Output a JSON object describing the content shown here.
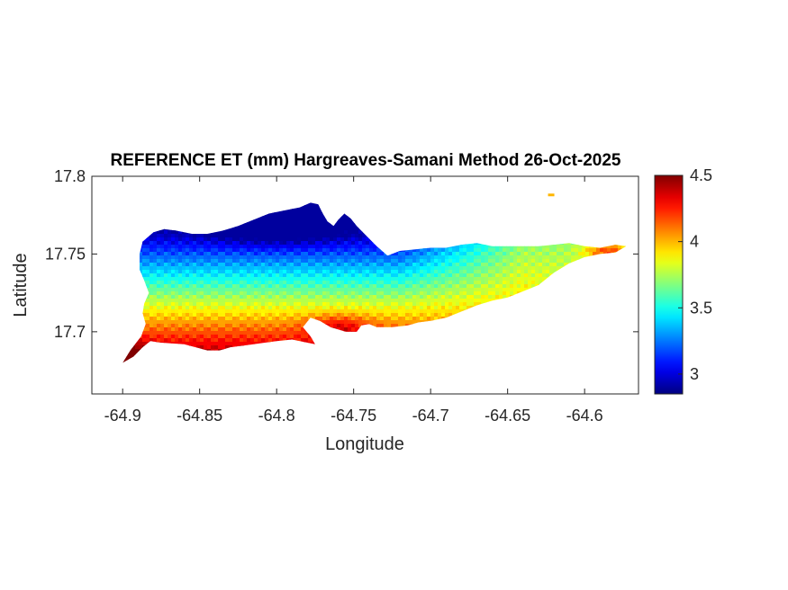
{
  "chart_data": {
    "type": "heatmap",
    "title": "REFERENCE ET (mm) Hargreaves-Samani Method  26-Oct-2025",
    "xlabel": "Longitude",
    "ylabel": "Latitude",
    "xlim": [
      -64.92,
      -64.565
    ],
    "ylim": [
      17.66,
      17.8
    ],
    "xticks": [
      -64.9,
      -64.85,
      -64.8,
      -64.75,
      -64.7,
      -64.65,
      -64.6
    ],
    "xtick_labels": [
      "-64.9",
      "-64.85",
      "-64.8",
      "-64.75",
      "-64.7",
      "-64.65",
      "-64.6"
    ],
    "yticks": [
      17.7,
      17.75,
      17.8
    ],
    "ytick_labels": [
      "17.7",
      "17.75",
      "17.8"
    ],
    "colormap": "jet",
    "colorbar": {
      "range": [
        2.85,
        4.5
      ],
      "ticks": [
        3,
        3.5,
        4,
        4.5
      ],
      "tick_labels": [
        "3",
        "3.5",
        "4",
        "4.5"
      ]
    },
    "grid": false,
    "island_outline_lonlat": [
      [
        -64.9,
        17.68
      ],
      [
        -64.893,
        17.684
      ],
      [
        -64.887,
        17.69
      ],
      [
        -64.882,
        17.694
      ],
      [
        -64.875,
        17.693
      ],
      [
        -64.86,
        17.692
      ],
      [
        -64.845,
        17.688
      ],
      [
        -64.837,
        17.688
      ],
      [
        -64.83,
        17.69
      ],
      [
        -64.815,
        17.692
      ],
      [
        -64.8,
        17.694
      ],
      [
        -64.79,
        17.695
      ],
      [
        -64.78,
        17.693
      ],
      [
        -64.775,
        17.692
      ],
      [
        -64.778,
        17.697
      ],
      [
        -64.783,
        17.703
      ],
      [
        -64.778,
        17.709
      ],
      [
        -64.772,
        17.707
      ],
      [
        -64.765,
        17.703
      ],
      [
        -64.755,
        17.7
      ],
      [
        -64.748,
        17.7
      ],
      [
        -64.745,
        17.704
      ],
      [
        -64.74,
        17.705
      ],
      [
        -64.735,
        17.703
      ],
      [
        -64.725,
        17.703
      ],
      [
        -64.715,
        17.704
      ],
      [
        -64.708,
        17.706
      ],
      [
        -64.7,
        17.707
      ],
      [
        -64.69,
        17.709
      ],
      [
        -64.68,
        17.713
      ],
      [
        -64.67,
        17.717
      ],
      [
        -64.66,
        17.72
      ],
      [
        -64.65,
        17.722
      ],
      [
        -64.64,
        17.726
      ],
      [
        -64.63,
        17.73
      ],
      [
        -64.62,
        17.738
      ],
      [
        -64.61,
        17.744
      ],
      [
        -64.6,
        17.748
      ],
      [
        -64.59,
        17.75
      ],
      [
        -64.58,
        17.751
      ],
      [
        -64.573,
        17.755
      ],
      [
        -64.58,
        17.756
      ],
      [
        -64.59,
        17.754
      ],
      [
        -64.6,
        17.755
      ],
      [
        -64.61,
        17.757
      ],
      [
        -64.62,
        17.756
      ],
      [
        -64.63,
        17.755
      ],
      [
        -64.64,
        17.755
      ],
      [
        -64.65,
        17.755
      ],
      [
        -64.66,
        17.755
      ],
      [
        -64.67,
        17.757
      ],
      [
        -64.68,
        17.756
      ],
      [
        -64.69,
        17.754
      ],
      [
        -64.7,
        17.754
      ],
      [
        -64.71,
        17.753
      ],
      [
        -64.72,
        17.752
      ],
      [
        -64.728,
        17.749
      ],
      [
        -64.735,
        17.755
      ],
      [
        -64.742,
        17.762
      ],
      [
        -64.748,
        17.768
      ],
      [
        -64.752,
        17.773
      ],
      [
        -64.756,
        17.776
      ],
      [
        -64.76,
        17.772
      ],
      [
        -64.763,
        17.768
      ],
      [
        -64.767,
        17.771
      ],
      [
        -64.77,
        17.776
      ],
      [
        -64.773,
        17.782
      ],
      [
        -64.778,
        17.783
      ],
      [
        -64.785,
        17.78
      ],
      [
        -64.795,
        17.778
      ],
      [
        -64.805,
        17.776
      ],
      [
        -64.815,
        17.772
      ],
      [
        -64.825,
        17.768
      ],
      [
        -64.835,
        17.765
      ],
      [
        -64.845,
        17.763
      ],
      [
        -64.855,
        17.763
      ],
      [
        -64.865,
        17.765
      ],
      [
        -64.873,
        17.766
      ],
      [
        -64.88,
        17.764
      ],
      [
        -64.887,
        17.758
      ],
      [
        -64.889,
        17.75
      ],
      [
        -64.889,
        17.74
      ],
      [
        -64.886,
        17.733
      ],
      [
        -64.883,
        17.725
      ],
      [
        -64.886,
        17.718
      ],
      [
        -64.887,
        17.712
      ],
      [
        -64.885,
        17.705
      ],
      [
        -64.888,
        17.697
      ],
      [
        -64.895,
        17.688
      ],
      [
        -64.9,
        17.68
      ]
    ],
    "value_field": {
      "description": "ET rises from ~2.9 mm in the northern hills to ~4.5 mm on the southern coast",
      "north_hills_min": 2.9,
      "south_coast_max": 4.5,
      "east_end_typical": 3.8,
      "islet": {
        "lon": -64.622,
        "lat": 17.788,
        "value": 4.0
      }
    }
  }
}
